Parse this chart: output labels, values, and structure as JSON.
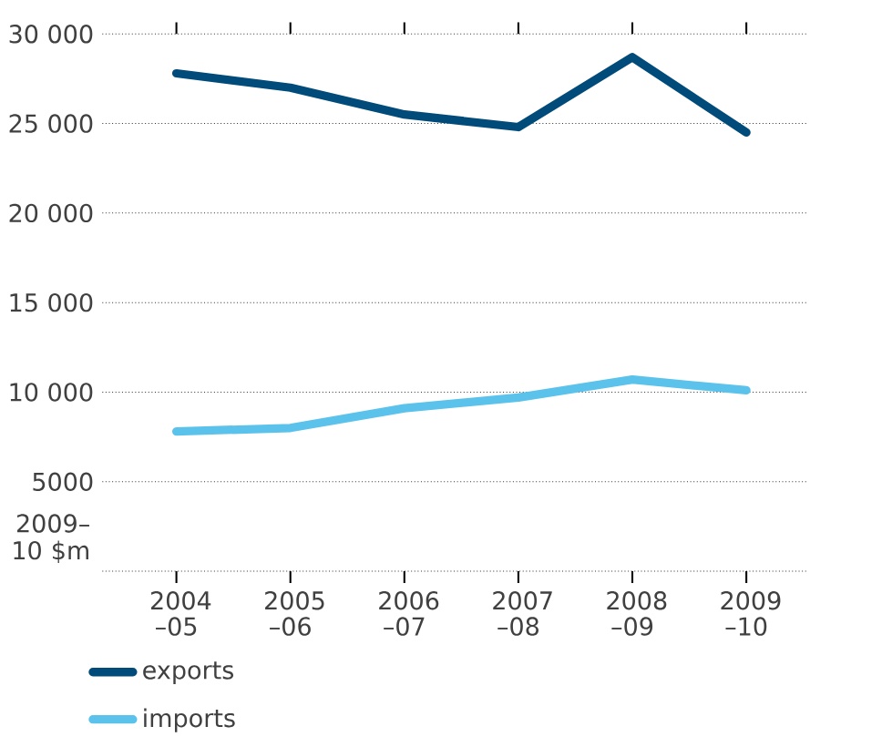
{
  "chart_data": {
    "type": "line",
    "ylabel": "2009–10 $m",
    "categories": [
      "2004 –05",
      "2005 –06",
      "2006 –07",
      "2007 –08",
      "2008 –09",
      "2009 –10"
    ],
    "series": [
      {
        "name": "exports",
        "color": "#004b7a",
        "values": [
          27800,
          27000,
          25500,
          24800,
          28700,
          24500
        ]
      },
      {
        "name": "imports",
        "color": "#5bc2ec",
        "values": [
          7800,
          8000,
          9100,
          9700,
          10700,
          10100
        ]
      }
    ],
    "ylim": [
      0,
      30000
    ],
    "yticks": [
      {
        "value": 0,
        "label": null
      },
      5000,
      {
        "value": 10000,
        "label": "10 000"
      },
      {
        "value": 15000,
        "label": "15 000"
      },
      {
        "value": 20000,
        "label": "20 000"
      },
      {
        "value": 25000,
        "label": "25 000"
      },
      {
        "value": 30000,
        "label": "30 000"
      }
    ],
    "grid": "y",
    "legend": "bottom left",
    "marker": "none",
    "line_style": "solid"
  }
}
